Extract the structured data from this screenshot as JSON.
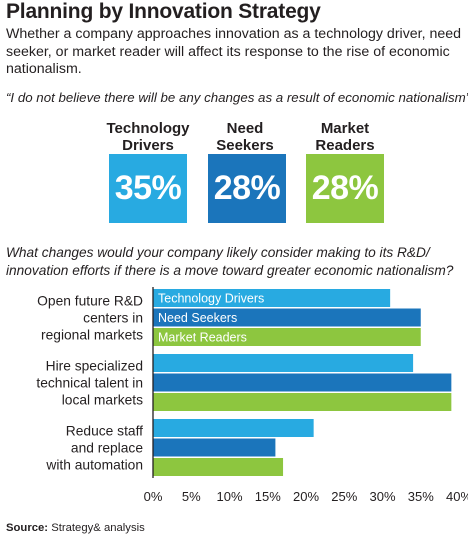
{
  "header": {
    "title": "Planning by Innovation Strategy",
    "subtitle": "Whether a company approaches innovation as a technology driver, need seeker, or market reader will affect its response to the rise of economic nationalism."
  },
  "quote": "“I do not believe there will be any changes as a result of economic nationalism”",
  "stats": [
    {
      "label_line1": "Technology",
      "label_line2": "Drivers",
      "value": "35%",
      "color": "#28aae1"
    },
    {
      "label_line1": "Need",
      "label_line2": "Seekers",
      "value": "28%",
      "color": "#1b75bb"
    },
    {
      "label_line1": "Market",
      "label_line2": "Readers",
      "value": "28%",
      "color": "#8dc63f"
    }
  ],
  "question": "What changes would your company likely consider making to its R&D/ innovation efforts if there is a move toward greater economic nationalism?",
  "chart_data": {
    "type": "bar",
    "orientation": "horizontal",
    "categories": [
      [
        "Open future R&D",
        "centers in",
        "regional markets"
      ],
      [
        "Hire specialized",
        "technical talent in",
        "local markets"
      ],
      [
        "Reduce staff",
        "and replace",
        "with automation"
      ]
    ],
    "series": [
      {
        "name": "Technology Drivers",
        "color": "#28aae1",
        "values": [
          31,
          34,
          21
        ]
      },
      {
        "name": "Need Seekers",
        "color": "#1b75bb",
        "values": [
          35,
          39,
          16
        ]
      },
      {
        "name": "Market Readers",
        "color": "#8dc63f",
        "values": [
          35,
          39,
          17
        ]
      }
    ],
    "xlim": [
      0,
      40
    ],
    "xticks": [
      "0%",
      "5%",
      "10%",
      "15%",
      "20%",
      "25%",
      "30%",
      "35%",
      "40%"
    ],
    "legend": "inside-first-group"
  },
  "source": {
    "label": "Source:",
    "text": "Strategy& analysis"
  }
}
